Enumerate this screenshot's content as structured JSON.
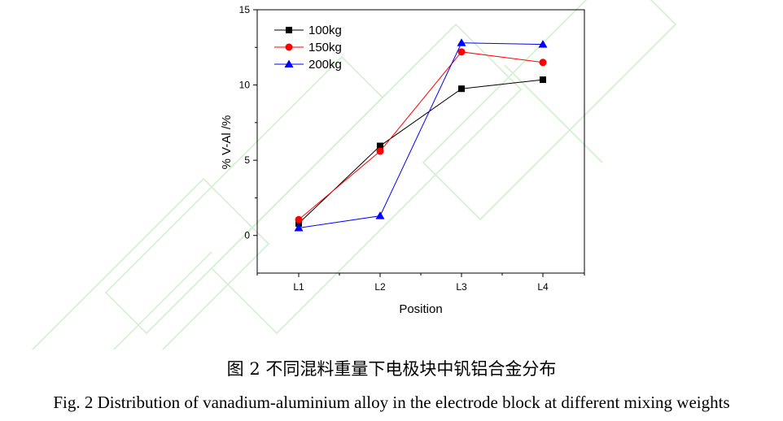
{
  "chart_data": {
    "type": "line",
    "categories": [
      "L1",
      "L2",
      "L3",
      "L4"
    ],
    "xlabel": "Position",
    "ylabel": "% V-Al  /%",
    "ylim": [
      -2.5,
      15
    ],
    "yticks": [
      0,
      5,
      10,
      15
    ],
    "legend_position": "top-left",
    "series": [
      {
        "name": "100kg",
        "color": "#000000",
        "marker": "square",
        "values": [
          0.8,
          5.95,
          9.75,
          10.35
        ]
      },
      {
        "name": "150kg",
        "color": "#ff0000",
        "marker": "circle",
        "values": [
          1.05,
          5.6,
          12.2,
          11.5
        ]
      },
      {
        "name": "200kg",
        "color": "#0000ff",
        "marker": "triangle",
        "values": [
          0.5,
          1.3,
          12.8,
          12.7
        ]
      }
    ]
  },
  "caption": {
    "chinese": "图 2  不同混料重量下电极块中钒铝合金分布",
    "english": "Fig. 2 Distribution of vanadium-aluminium alloy in the electrode block at different mixing weights"
  }
}
